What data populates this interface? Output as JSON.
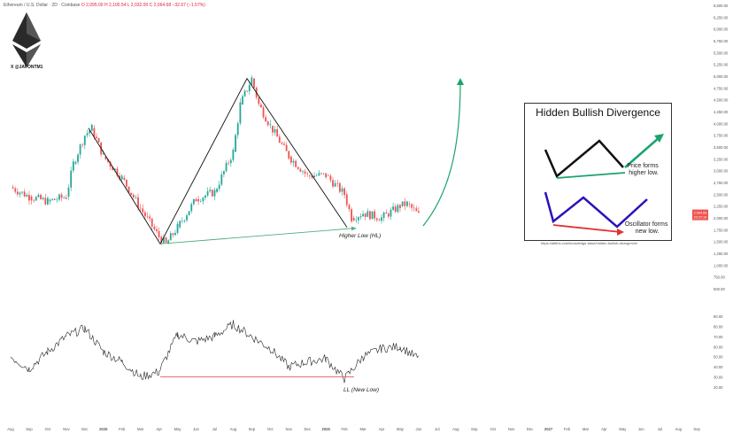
{
  "header": {
    "symbol": "Ethereum / U.S. Dollar · 2D · Coinbase",
    "ohlc": "O 2,095.00  H 2,100.54  L 2,032.00  C 2,064.68  −32.67 (−1.57%)"
  },
  "branding": {
    "logo_icon": "ethereum-logo-icon",
    "handle": "X @JAVONTM1"
  },
  "annotations": {
    "higher_low": "Higher Low (HL)",
    "new_low": "LL (New Low)"
  },
  "inset": {
    "title": "Hidden Bullish Divergence",
    "price_note": "Price forms\nhigher low.",
    "osc_note": "Oscillator forms\nnew low.",
    "url": "https://altfins.com/knowledge-base/hidden-bullish-divergence/"
  },
  "price_tags": {
    "last": "2,064.68",
    "time": "22:27:10"
  },
  "colors": {
    "bull": "#26a69a",
    "bear": "#ef5350",
    "divergence_line": "#4caf7d",
    "new_low_line": "#e05a5a",
    "arrow": "#1aa36b",
    "inset_black": "#111111",
    "inset_blue": "#2a12b8"
  },
  "chart_data": [
    {
      "type": "line",
      "title": "Ethereum / U.S. Dollar · 2D · Coinbase",
      "x_label": "",
      "y_label": "",
      "x_ticks": [
        "Aug",
        "Sep",
        "Oct",
        "Nov",
        "Dec",
        "2025",
        "Feb",
        "Mar",
        "Apr",
        "May",
        "Jun",
        "Jul",
        "Aug",
        "Sep",
        "Oct",
        "Nov",
        "Dec",
        "2026",
        "Feb",
        "Mar",
        "Apr",
        "May",
        "Jun",
        "Jul",
        "Aug",
        "Sep",
        "Oct",
        "Nov",
        "Dec",
        "2027",
        "Feb",
        "Mar",
        "Apr",
        "May",
        "Jun",
        "Jul",
        "Aug",
        "Sep"
      ],
      "y_ticks": [
        6500,
        6250,
        6000,
        5750,
        5500,
        5250,
        5000,
        4750,
        4500,
        4250,
        4000,
        3750,
        3500,
        3250,
        3000,
        2750,
        2500,
        2250,
        2000,
        1750,
        1500,
        1250,
        1000,
        750,
        500
      ],
      "y_range": [
        500,
        6500
      ],
      "series": [
        {
          "x": [
            "Aug",
            "Sep",
            "Oct",
            "Nov",
            "Nov",
            "Dec",
            "Dec",
            "2025",
            "Feb",
            "Mar",
            "Apr",
            "Apr",
            "May",
            "Jun",
            "Jul",
            "Aug",
            "Aug",
            "Sep",
            "Sep",
            "Oct",
            "Nov",
            "Dec",
            "2026",
            "Feb",
            "Feb",
            "Mar",
            "Apr",
            "May",
            "May",
            "Jun"
          ],
          "y": [
            2650,
            2450,
            2350,
            2450,
            3150,
            3750,
            3900,
            3300,
            2850,
            2200,
            1600,
            1450,
            1800,
            2400,
            2550,
            3400,
            4400,
            4950,
            4400,
            3950,
            3300,
            2900,
            2900,
            2500,
            2000,
            2100,
            2000,
            2250,
            2300,
            2060
          ]
        }
      ],
      "patterns": [
        {
          "name": "Higher Low (HL)",
          "from": {
            "x": "Apr",
            "y": 1450
          },
          "to": {
            "x": "Feb",
            "y": 1800
          }
        }
      ],
      "grid": false,
      "y_axis_side": "right"
    },
    {
      "type": "line",
      "title": "",
      "y_ticks": [
        90,
        80,
        70,
        60,
        50,
        40,
        30,
        20
      ],
      "y_range": [
        20,
        90
      ],
      "series": [
        {
          "x": [
            "Aug",
            "Sep",
            "Oct",
            "Nov",
            "Dec",
            "2025",
            "Feb",
            "Mar",
            "Apr",
            "May",
            "Jun",
            "Jul",
            "Aug",
            "Sep",
            "Oct",
            "Nov",
            "Dec",
            "2026",
            "Feb",
            "Mar",
            "Apr",
            "May",
            "Jun"
          ],
          "y": [
            50,
            38,
            55,
            70,
            78,
            55,
            45,
            30,
            35,
            72,
            65,
            70,
            82,
            70,
            58,
            40,
            45,
            48,
            28,
            50,
            58,
            60,
            48
          ]
        }
      ],
      "patterns": [
        {
          "name": "LL (New Low)",
          "from": {
            "x": "Apr",
            "y": 30
          },
          "to": {
            "x": "Feb",
            "y": 28
          }
        }
      ]
    }
  ]
}
